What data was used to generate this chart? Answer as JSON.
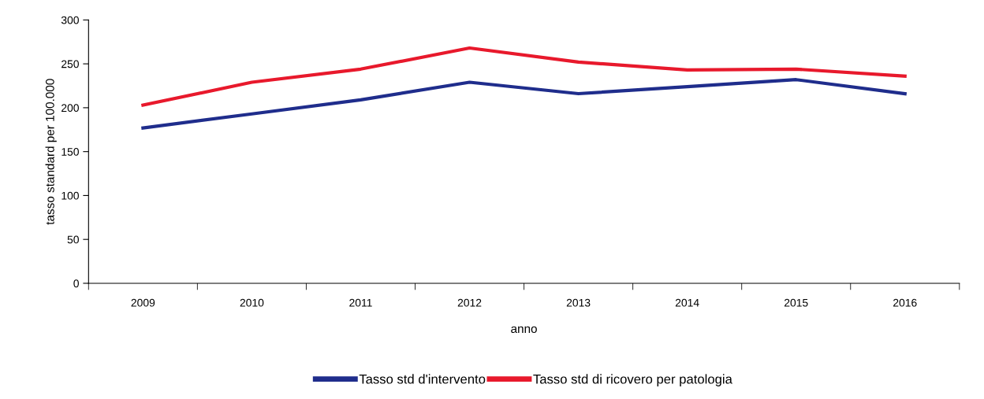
{
  "chart_data": {
    "type": "line",
    "xlabel": "anno",
    "ylabel": "tasso standard per 100.000",
    "categories": [
      "2009",
      "2010",
      "2011",
      "2012",
      "2013",
      "2014",
      "2015",
      "2016"
    ],
    "series": [
      {
        "name": "Tasso std d'intervento",
        "color": "#1f2d8c",
        "values": [
          177,
          193,
          209,
          229,
          216,
          224,
          232,
          216
        ]
      },
      {
        "name": "Tasso std di ricovero per patologia",
        "color": "#e8192c",
        "values": [
          203,
          229,
          244,
          268,
          252,
          243,
          244,
          236
        ]
      }
    ],
    "ylim": [
      0,
      300
    ],
    "yticks": [
      0,
      50,
      100,
      150,
      200,
      250,
      300
    ],
    "grid": false,
    "legend": "bottom",
    "marker": "none",
    "line_style": "solid"
  }
}
